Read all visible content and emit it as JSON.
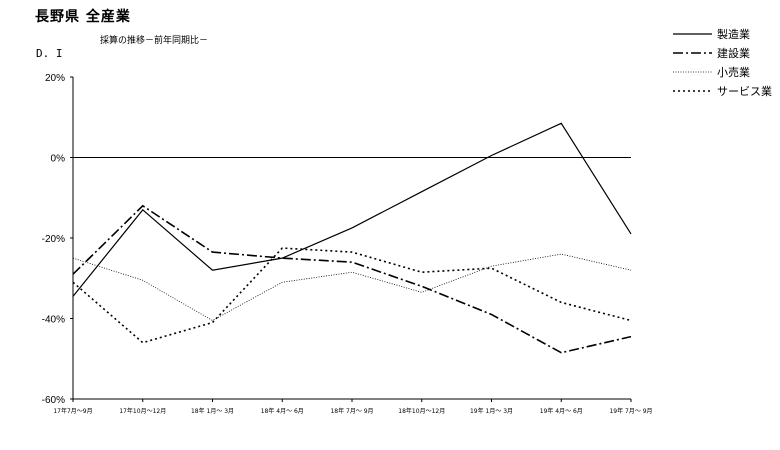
{
  "header": {
    "title": "長野県 全産業",
    "subtitle": "採算の推移－前年同期比－",
    "y_unit": "D. I"
  },
  "chart_data": {
    "type": "line",
    "title": "長野県 全産業",
    "subtitle": "採算の推移－前年同期比－",
    "ylabel": "D. I",
    "xlabel": "",
    "categories": [
      "17年7月～9月",
      "17年10月～12月",
      "18年 1月～ 3月",
      "18年 4月～ 6月",
      "18年 7月～ 9月",
      "18年10月～12月",
      "19年 1月～ 3月",
      "19年 4月～ 6月",
      "19年 7月～ 9月"
    ],
    "ylim": [
      -60,
      20
    ],
    "yticks": [
      20,
      0,
      -20,
      -40,
      -60
    ],
    "ytick_labels": [
      "20%",
      "0%",
      "-20%",
      "-40%",
      "-60%"
    ],
    "zero_line": true,
    "grid": false,
    "legend_position": "top-right",
    "series": [
      {
        "name": "製造業",
        "style": "solid",
        "color": "#000000",
        "values": [
          -34.5,
          -13,
          -28,
          -25,
          -17.5,
          -8.5,
          0.5,
          8.5,
          -19
        ]
      },
      {
        "name": "建設業",
        "style": "dashdot",
        "color": "#000000",
        "values": [
          -29,
          -12,
          -23.5,
          -25,
          -26,
          -32,
          -39,
          -48.5,
          -44.5
        ]
      },
      {
        "name": "小売業",
        "style": "thin-dotted",
        "color": "#000000",
        "values": [
          -25,
          -30.5,
          -40.5,
          -31,
          -28.5,
          -33.5,
          -27,
          -24,
          -28
        ]
      },
      {
        "name": "サービス業",
        "style": "dotted",
        "color": "#000000",
        "values": [
          -31,
          -46,
          -41,
          -22.5,
          -23.5,
          -28.5,
          -27.5,
          -36,
          -40.5
        ]
      }
    ]
  }
}
